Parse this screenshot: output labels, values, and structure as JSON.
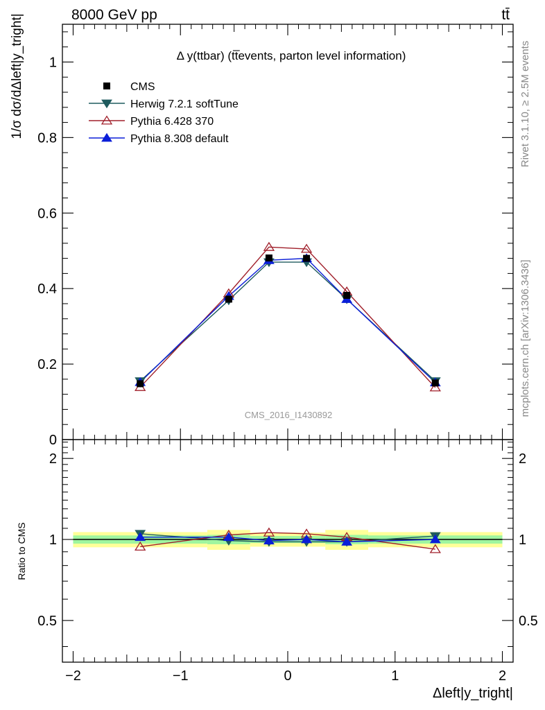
{
  "header": {
    "energy_label": "8000 GeV pp",
    "process_label": "tt̄"
  },
  "side_labels": {
    "rivet": "Rivet 3.1.10, ≥ 2.5M events",
    "mcplots": "mcplots.cern.ch [arXiv:1306.3436]"
  },
  "chart_data": {
    "type": "line",
    "title": "Δ y(ttbar) (tt̅events, parton level information)",
    "analysis_label": "CMS_2016_I1430892",
    "xlabel": "Δleft|y_tright|",
    "ylabel": "1/σ dσ/dΔleft|y_tright|",
    "ratio_ylabel": "Ratio to CMS",
    "xlim": [
      -2.1,
      2.1
    ],
    "ylim": [
      0,
      1.1
    ],
    "ratio_ylim": [
      0.35,
      2.35
    ],
    "ratio_log_scale": true,
    "grid": false,
    "legend_position": "top-left",
    "x_ticks": [
      "−2",
      "−1",
      "0",
      "1",
      "2"
    ],
    "x_tick_values": [
      -2,
      -1,
      0,
      1,
      2
    ],
    "y_ticks": [
      "0",
      "0.2",
      "0.4",
      "0.6",
      "0.8",
      "1"
    ],
    "y_tick_values": [
      0,
      0.2,
      0.4,
      0.6,
      0.8,
      1.0
    ],
    "ratio_ticks": [
      "0.5",
      "1",
      "2"
    ],
    "ratio_tick_values": [
      0.5,
      1,
      2
    ],
    "bin_edges": [
      -2.0,
      -0.75,
      -0.35,
      0.0,
      0.35,
      0.75,
      2.0
    ],
    "x": [
      -1.375,
      -0.55,
      -0.175,
      0.175,
      0.55,
      1.375
    ],
    "series": [
      {
        "name": "CMS",
        "role": "data",
        "marker": "square",
        "color": "#000000",
        "values": [
          0.148,
          0.372,
          0.481,
          0.48,
          0.382,
          0.15
        ]
      },
      {
        "name": "Herwig 7.2.1 softTune",
        "marker": "triangle-down",
        "color": "#1f5b5e",
        "values": [
          0.155,
          0.369,
          0.47,
          0.47,
          0.372,
          0.155
        ]
      },
      {
        "name": "Pythia 6.428 370",
        "marker": "triangle-up-open",
        "color": "#a01f2a",
        "values": [
          0.139,
          0.387,
          0.51,
          0.505,
          0.392,
          0.138
        ]
      },
      {
        "name": "Pythia 8.308 default",
        "marker": "triangle-up",
        "color": "#0a1ed8",
        "values": [
          0.152,
          0.38,
          0.475,
          0.48,
          0.372,
          0.151
        ]
      }
    ],
    "ratio_series": [
      {
        "name": "Herwig 7.2.1 softTune",
        "values": [
          1.05,
          0.99,
          0.98,
          0.98,
          0.98,
          1.03
        ]
      },
      {
        "name": "Pythia 6.428 370",
        "values": [
          0.94,
          1.04,
          1.06,
          1.05,
          1.02,
          0.92
        ]
      },
      {
        "name": "Pythia 8.308 default",
        "values": [
          1.02,
          1.02,
          0.99,
          1.0,
          0.98,
          1.0
        ]
      }
    ],
    "uncertainty_bands": {
      "inner_color": "#9ff59f",
      "outer_color": "#ffff99",
      "inner": [
        0.035,
        0.04,
        0.03,
        0.03,
        0.04,
        0.035
      ],
      "outer": [
        0.065,
        0.085,
        0.06,
        0.06,
        0.085,
        0.065
      ]
    }
  }
}
